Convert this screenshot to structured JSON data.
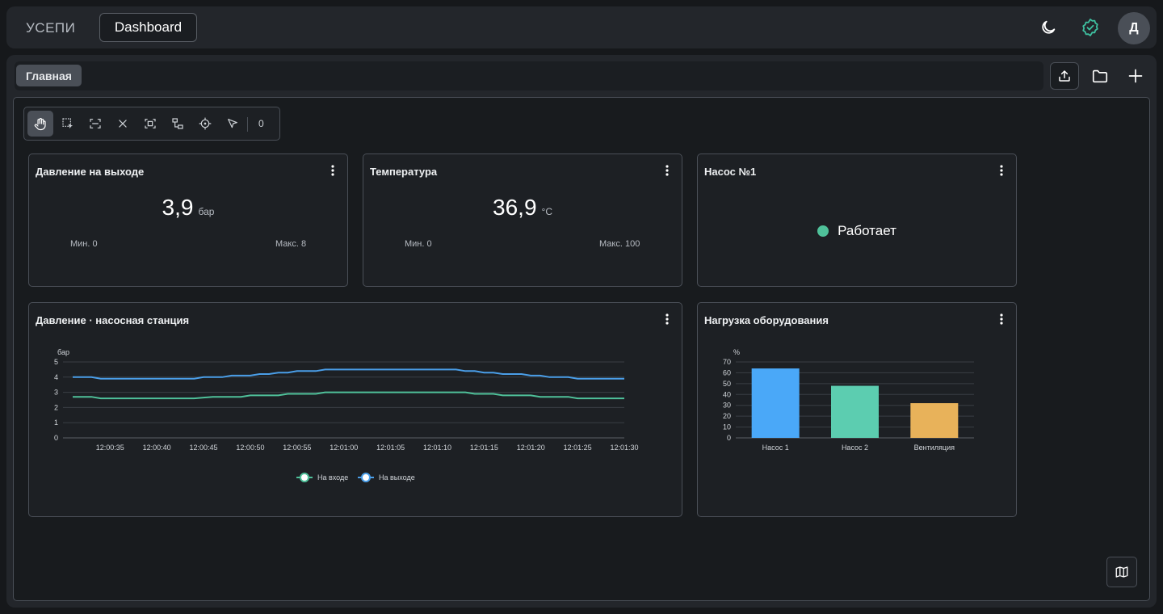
{
  "header": {
    "brand": "УСЕПИ",
    "active_tab": "Dashboard",
    "avatar_initial": "Д",
    "status_color": "#3ec0a0"
  },
  "workspace": {
    "tabs": [
      {
        "label": "Главная"
      }
    ]
  },
  "toolbar": {
    "tools": [
      "hand-icon",
      "select-area-icon",
      "fit-icon",
      "close-icon",
      "focus-icon",
      "connect-icon",
      "target-icon",
      "pointer-icon"
    ],
    "selection_count": "0"
  },
  "widgets": {
    "pressure_out": {
      "title": "Давление на выходе",
      "value": "3,9",
      "unit": "бар",
      "min_label": "Мин. 0",
      "max_label": "Макс. 8"
    },
    "temperature": {
      "title": "Температура",
      "value": "36,9",
      "unit": "°C",
      "min_label": "Мин. 0",
      "max_label": "Макс. 100"
    },
    "pump1": {
      "title": "Насос №1",
      "status": "Работает",
      "status_color": "#4fc19a"
    },
    "pressure_chart": {
      "title": "Давление · насосная станция"
    },
    "load_chart": {
      "title": "Нагрузка оборудования"
    }
  },
  "chart_data": [
    {
      "type": "line",
      "ylabel": "бар",
      "ylim": [
        0,
        5
      ],
      "yticks": [
        0,
        1,
        2,
        3,
        4,
        5
      ],
      "x_ticks": [
        "12:00:35",
        "12:00:40",
        "12:00:45",
        "12:00:50",
        "12:00:55",
        "12:01:00",
        "12:01:05",
        "12:01:10",
        "12:01:15",
        "12:01:20",
        "12:01:25",
        "12:01:30"
      ],
      "x_range_seconds": [
        31,
        90
      ],
      "grid": true,
      "legend": "bottom-center",
      "series": [
        {
          "name": "На входе",
          "color": "#4fc19a",
          "points": [
            [
              31,
              2.7
            ],
            [
              33,
              2.7
            ],
            [
              34,
              2.6
            ],
            [
              44,
              2.6
            ],
            [
              46,
              2.7
            ],
            [
              49,
              2.7
            ],
            [
              50,
              2.8
            ],
            [
              53,
              2.8
            ],
            [
              54,
              2.9
            ],
            [
              57,
              2.9
            ],
            [
              58,
              3.0
            ],
            [
              73,
              3.0
            ],
            [
              74,
              2.9
            ],
            [
              76,
              2.9
            ],
            [
              77,
              2.8
            ],
            [
              80,
              2.8
            ],
            [
              81,
              2.7
            ],
            [
              84,
              2.7
            ],
            [
              85,
              2.6
            ],
            [
              90,
              2.6
            ]
          ]
        },
        {
          "name": "На выходе",
          "color": "#4a9ee8",
          "points": [
            [
              31,
              4.0
            ],
            [
              33,
              4.0
            ],
            [
              34,
              3.9
            ],
            [
              44,
              3.9
            ],
            [
              45,
              4.0
            ],
            [
              47,
              4.0
            ],
            [
              48,
              4.1
            ],
            [
              50,
              4.1
            ],
            [
              51,
              4.2
            ],
            [
              52,
              4.2
            ],
            [
              53,
              4.3
            ],
            [
              54,
              4.3
            ],
            [
              55,
              4.4
            ],
            [
              57,
              4.4
            ],
            [
              58,
              4.5
            ],
            [
              72,
              4.5
            ],
            [
              73,
              4.4
            ],
            [
              74,
              4.4
            ],
            [
              75,
              4.3
            ],
            [
              76,
              4.3
            ],
            [
              77,
              4.2
            ],
            [
              79,
              4.2
            ],
            [
              80,
              4.1
            ],
            [
              81,
              4.1
            ],
            [
              82,
              4.0
            ],
            [
              84,
              4.0
            ],
            [
              85,
              3.9
            ],
            [
              90,
              3.9
            ]
          ]
        }
      ]
    },
    {
      "type": "bar",
      "ylabel": "%",
      "ylim": [
        0,
        70
      ],
      "yticks": [
        0,
        10,
        20,
        30,
        40,
        50,
        60,
        70
      ],
      "categories": [
        "Насос 1",
        "Насос 2",
        "Вентиляция"
      ],
      "values": [
        64,
        48,
        32
      ],
      "colors": [
        "#4aa8f8",
        "#5ccdb0",
        "#e8b25a"
      ],
      "grid": true
    }
  ]
}
